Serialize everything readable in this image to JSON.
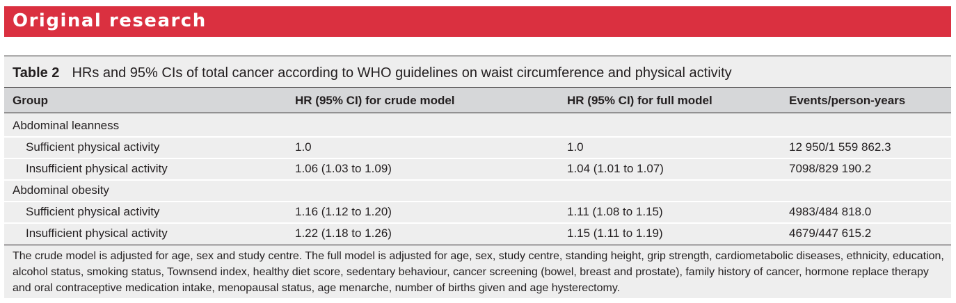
{
  "banner": {
    "title": "Original research",
    "color": "#da3040"
  },
  "table": {
    "label": "Table 2",
    "caption": "HRs and 95% CIs of total cancer according to WHO guidelines on waist circumference and physical activity",
    "columns": [
      "Group",
      "HR (95% CI) for crude model",
      "HR (95% CI) for full model",
      "Events/person-years"
    ],
    "rows": [
      {
        "group": "Abdominal leanness",
        "crude": "",
        "full": "",
        "events": ""
      },
      {
        "group": "Sufficient physical activity",
        "crude": "1.0",
        "full": "1.0",
        "events": "12 950/1 559 862.3"
      },
      {
        "group": "Insufficient physical activity",
        "crude": "1.06 (1.03 to 1.09)",
        "full": "1.04 (1.01 to 1.07)",
        "events": "7098/829 190.2"
      },
      {
        "group": "Abdominal obesity",
        "crude": "",
        "full": "",
        "events": ""
      },
      {
        "group": "Sufficient physical activity",
        "crude": "1.16 (1.12 to 1.20)",
        "full": "1.11 (1.08 to 1.15)",
        "events": "4983/484 818.0"
      },
      {
        "group": "Insufficient physical activity",
        "crude": "1.22 (1.18 to 1.26)",
        "full": "1.15 (1.11 to 1.19)",
        "events": "4679/447 615.2"
      }
    ],
    "footnote": "The crude model is adjusted for age, sex and study centre. The full model is adjusted for age, sex, study centre, standing height, grip strength, cardiometabolic diseases, ethnicity, education, alcohol status, smoking status, Townsend index, healthy diet score, sedentary behaviour, cancer screening (bowel, breast and prostate), family history of cancer, hormone replace therapy and oral contraceptive medication intake, menopausal status, age menarche, number of births given and age hysterectomy."
  }
}
